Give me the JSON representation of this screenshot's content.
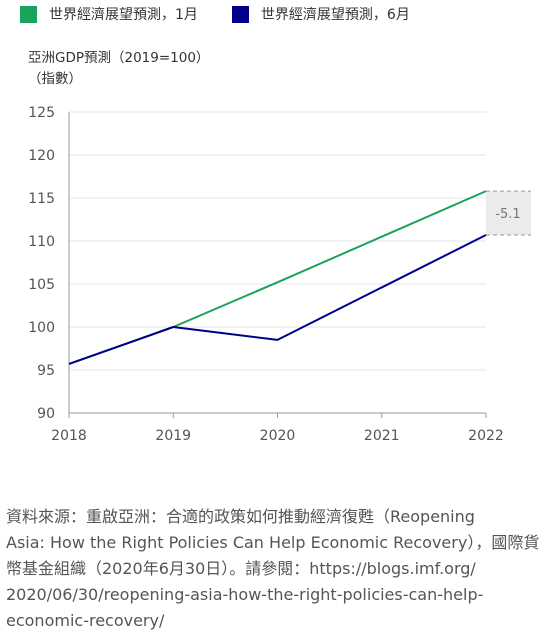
{
  "legend": [
    {
      "label": "世界經濟展望預測，1月",
      "color": "#1aa35c"
    },
    {
      "label": "世界經濟展望預測，6月",
      "color": "#00008b"
    }
  ],
  "chart_data": {
    "type": "line",
    "ylabel_line1": "亞洲GDP預測（2019=100）",
    "ylabel_line2": "（指數）",
    "x": [
      "2018",
      "2019",
      "2020",
      "2021",
      "2022"
    ],
    "yticks": [
      "125",
      "120",
      "115",
      "110",
      "105",
      "100",
      "95",
      "90"
    ],
    "ylim": [
      90,
      125
    ],
    "grid": true,
    "series": [
      {
        "name": "世界經濟展望預測，1月",
        "color": "#1aa35c",
        "values": [
          95.7,
          100.0,
          105.2,
          110.5,
          115.8
        ]
      },
      {
        "name": "世界經濟展望預測，6月",
        "color": "#00008b",
        "values": [
          95.7,
          100.0,
          98.5,
          104.6,
          110.7
        ]
      }
    ],
    "annotation": {
      "label": "-5.1",
      "x": "2022",
      "y_from": 110.7,
      "y_to": 115.8
    }
  },
  "source": {
    "lines": [
      "資料來源：重啟亞洲：合適的政策如何推動經濟復甦（Reopening",
      "Asia: How the Right Policies Can Help Economic Recovery），國際貨",
      "幣基金組織（2020年6月30日）。請參閱：https://blogs.imf.org/",
      "2020/06/30/reopening-asia-how-the-right-policies-can-help-",
      "economic-recovery/"
    ]
  }
}
